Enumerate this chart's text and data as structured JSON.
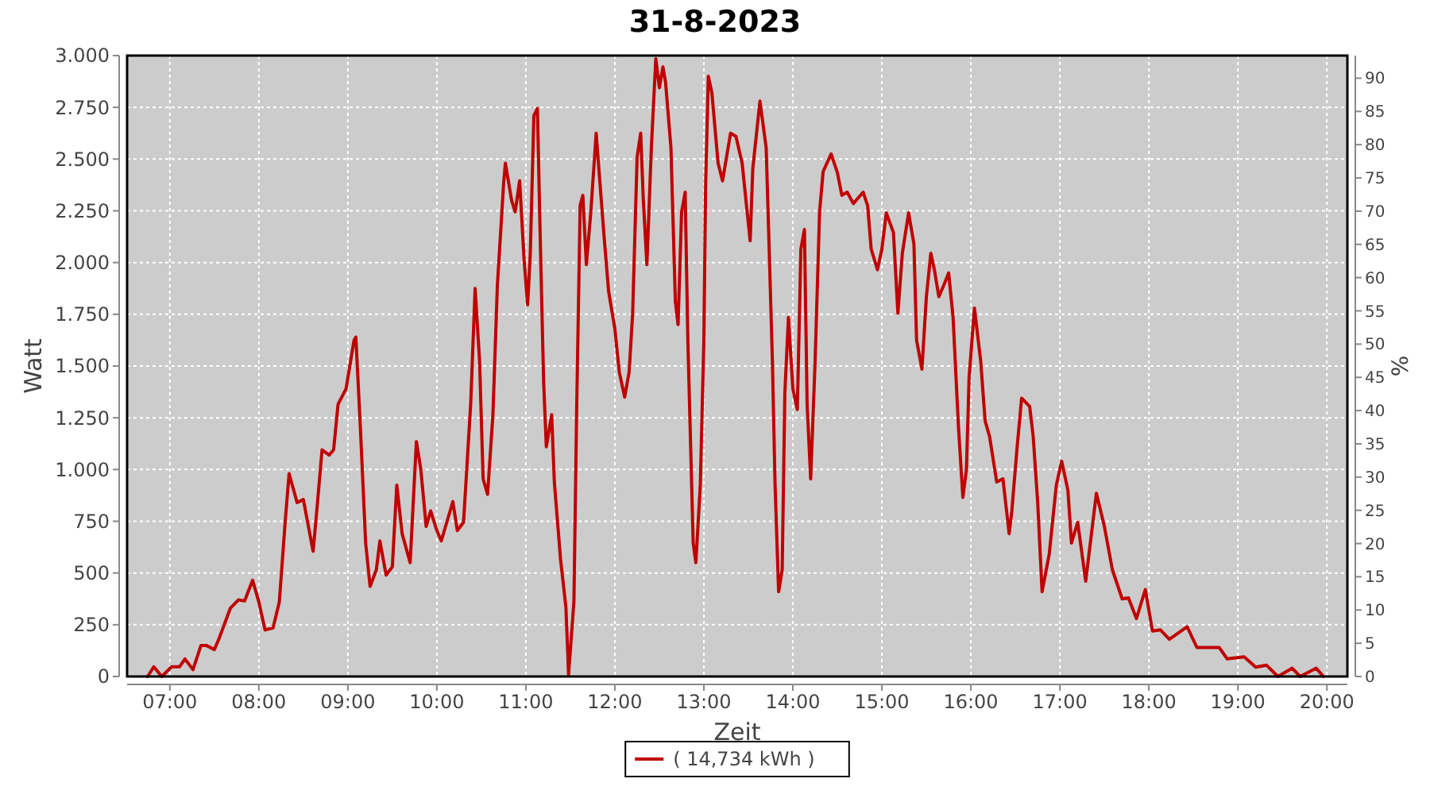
{
  "chart_data": {
    "type": "line",
    "title": "31-8-2023",
    "xlabel": "Zeit",
    "ylabel": "Watt",
    "y2label": "%",
    "xlim": [
      6.52,
      20.23
    ],
    "xticks": [
      {
        "value": 7,
        "label": "07:00"
      },
      {
        "value": 8,
        "label": "08:00"
      },
      {
        "value": 9,
        "label": "09:00"
      },
      {
        "value": 10,
        "label": "10:00"
      },
      {
        "value": 11,
        "label": "11:00"
      },
      {
        "value": 12,
        "label": "12:00"
      },
      {
        "value": 13,
        "label": "13:00"
      },
      {
        "value": 14,
        "label": "14:00"
      },
      {
        "value": 15,
        "label": "15:00"
      },
      {
        "value": 16,
        "label": "16:00"
      },
      {
        "value": 17,
        "label": "17:00"
      },
      {
        "value": 18,
        "label": "18:00"
      },
      {
        "value": 19,
        "label": "19:00"
      },
      {
        "value": 20,
        "label": "20:00"
      }
    ],
    "ylim": [
      0,
      3000
    ],
    "yticks": [
      0,
      250,
      500,
      750,
      {
        "value": 1000,
        "label": "1.000"
      },
      {
        "value": 1250,
        "label": "1.250"
      },
      {
        "value": 1500,
        "label": "1.500"
      },
      {
        "value": 1750,
        "label": "1.750"
      },
      {
        "value": 2000,
        "label": "2.000"
      },
      {
        "value": 2250,
        "label": "2.250"
      },
      {
        "value": 2500,
        "label": "2.500"
      },
      {
        "value": 2750,
        "label": "2.750"
      },
      {
        "value": 3000,
        "label": "3.000"
      }
    ],
    "y2lim": [
      0,
      93.4
    ],
    "y2ticks": [
      0,
      5,
      10,
      15,
      20,
      25,
      30,
      35,
      40,
      45,
      50,
      55,
      60,
      65,
      70,
      75,
      80,
      85,
      90
    ],
    "grid": true,
    "legend": "bottom",
    "line_style": "solid",
    "marker": "none",
    "series": [
      {
        "name": "( 14,734 kWh )",
        "color": "#c00000",
        "x": [
          6.75,
          6.82,
          6.91,
          7.02,
          7.11,
          7.17,
          7.26,
          7.35,
          7.41,
          7.5,
          7.55,
          7.68,
          7.77,
          7.84,
          7.93,
          8,
          8.07,
          8.16,
          8.23,
          8.3,
          8.34,
          8.43,
          8.5,
          8.61,
          8.66,
          8.71,
          8.79,
          8.84,
          8.89,
          8.98,
          9.07,
          9.09,
          9.14,
          9.2,
          9.25,
          9.32,
          9.36,
          9.43,
          9.5,
          9.55,
          9.61,
          9.7,
          9.77,
          9.82,
          9.88,
          9.93,
          10,
          10.05,
          10.18,
          10.23,
          10.3,
          10.38,
          10.43,
          10.48,
          10.52,
          10.57,
          10.63,
          10.68,
          10.75,
          10.77,
          10.84,
          10.88,
          10.93,
          10.98,
          11.02,
          11.05,
          11.09,
          11.13,
          11.16,
          11.2,
          11.23,
          11.29,
          11.32,
          11.39,
          11.45,
          11.48,
          11.54,
          11.57,
          11.61,
          11.64,
          11.68,
          11.73,
          11.79,
          11.82,
          11.88,
          11.93,
          12,
          12.05,
          12.11,
          12.16,
          12.2,
          12.25,
          12.29,
          12.32,
          12.36,
          12.41,
          12.46,
          12.5,
          12.54,
          12.57,
          12.63,
          12.68,
          12.71,
          12.75,
          12.79,
          12.82,
          12.88,
          12.91,
          12.96,
          13,
          13.02,
          13.05,
          13.09,
          13.16,
          13.21,
          13.3,
          13.36,
          13.43,
          13.52,
          13.55,
          13.63,
          13.7,
          13.73,
          13.77,
          13.8,
          13.84,
          13.88,
          13.91,
          13.95,
          14,
          14.05,
          14.09,
          14.13,
          14.16,
          14.2,
          14.25,
          14.3,
          14.34,
          14.43,
          14.5,
          14.55,
          14.61,
          14.68,
          14.79,
          14.84,
          14.88,
          14.95,
          15,
          15.05,
          15.13,
          15.18,
          15.23,
          15.3,
          15.36,
          15.39,
          15.45,
          15.5,
          15.55,
          15.59,
          15.64,
          15.7,
          15.75,
          15.8,
          15.86,
          15.91,
          15.95,
          15.98,
          16.04,
          16.11,
          16.16,
          16.21,
          16.29,
          16.36,
          16.43,
          16.46,
          16.52,
          16.57,
          16.66,
          16.7,
          16.75,
          16.8,
          16.88,
          16.96,
          17.02,
          17.09,
          17.13,
          17.2,
          17.29,
          17.41,
          17.5,
          17.59,
          17.7,
          17.77,
          17.86,
          17.96,
          18.04,
          18.13,
          18.23,
          18.43,
          18.54,
          18.66,
          18.79,
          18.88,
          19.07,
          19.2,
          19.32,
          19.45,
          19.61,
          19.7,
          19.88,
          19.96
        ],
        "values": [
          0,
          47,
          0,
          47,
          47,
          85,
          33,
          150,
          150,
          130,
          180,
          330,
          370,
          365,
          465,
          360,
          225,
          235,
          360,
          770,
          980,
          840,
          855,
          605,
          845,
          1095,
          1070,
          1095,
          1315,
          1390,
          1625,
          1640,
          1210,
          645,
          435,
          515,
          655,
          490,
          530,
          925,
          690,
          550,
          1135,
          1000,
          725,
          800,
          705,
          655,
          845,
          705,
          745,
          1315,
          1875,
          1525,
          955,
          880,
          1265,
          1890,
          2380,
          2480,
          2300,
          2245,
          2395,
          2015,
          1795,
          2045,
          2710,
          2745,
          2145,
          1420,
          1110,
          1265,
          940,
          565,
          335,
          10,
          360,
          1265,
          2275,
          2325,
          1990,
          2245,
          2625,
          2455,
          2120,
          1860,
          1680,
          1470,
          1350,
          1470,
          1755,
          2510,
          2625,
          2300,
          1990,
          2555,
          2985,
          2845,
          2945,
          2870,
          2555,
          1810,
          1700,
          2245,
          2340,
          1625,
          645,
          550,
          925,
          1625,
          2380,
          2900,
          2820,
          2480,
          2395,
          2625,
          2610,
          2480,
          2105,
          2455,
          2780,
          2555,
          2120,
          1525,
          925,
          410,
          515,
          1370,
          1735,
          1390,
          1290,
          2065,
          2160,
          1315,
          955,
          1525,
          2245,
          2440,
          2525,
          2435,
          2325,
          2340,
          2285,
          2340,
          2275,
          2065,
          1965,
          2065,
          2240,
          2145,
          1755,
          2045,
          2240,
          2090,
          1625,
          1485,
          1835,
          2045,
          1965,
          1835,
          1895,
          1950,
          1735,
          1210,
          865,
          1000,
          1445,
          1780,
          1525,
          1235,
          1160,
          940,
          955,
          690,
          800,
          1110,
          1345,
          1305,
          1160,
          845,
          410,
          590,
          925,
          1040,
          900,
          645,
          745,
          460,
          885,
          725,
          515,
          375,
          380,
          280,
          420,
          220,
          225,
          180,
          240,
          140,
          140,
          140,
          85,
          95,
          45,
          55,
          0,
          40,
          0,
          40,
          0
        ]
      }
    ]
  }
}
